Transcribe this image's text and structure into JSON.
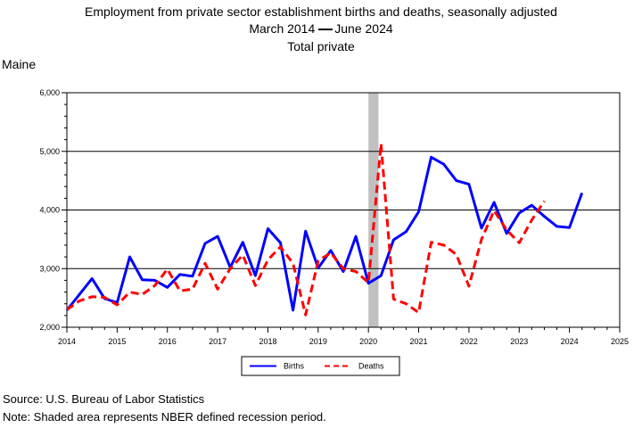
{
  "title": {
    "line1": "Employment from private sector establishment births and deaths, seasonally adjusted",
    "line2_start": "March 2014",
    "line2_end": "June 2024",
    "line3": "Total private"
  },
  "region": "Maine",
  "footer": {
    "source": "Source: U.S. Bureau of Labor Statistics",
    "note": "Note: Shaded area represents NBER defined recession period."
  },
  "chart_data": {
    "type": "line",
    "xlim": [
      2014,
      2025
    ],
    "ylim": [
      2000,
      6000
    ],
    "x_ticks": [
      "2014",
      "2015",
      "2016",
      "2017",
      "2018",
      "2019",
      "2020",
      "2021",
      "2022",
      "2023",
      "2024",
      "2025"
    ],
    "y_ticks": [
      "2,000",
      "3,000",
      "4,000",
      "5,000",
      "6,000"
    ],
    "grid": "horizontal",
    "legend_position": "bottom",
    "recession": {
      "start": 2020.0,
      "end": 2020.2
    },
    "series": [
      {
        "name": "Births",
        "color": "#0000ff",
        "style": "solid",
        "x": [
          2014.0,
          2014.25,
          2014.5,
          2014.75,
          2015.0,
          2015.25,
          2015.5,
          2015.75,
          2016.0,
          2016.25,
          2016.5,
          2016.75,
          2017.0,
          2017.25,
          2017.5,
          2017.75,
          2018.0,
          2018.25,
          2018.5,
          2018.75,
          2019.0,
          2019.25,
          2019.5,
          2019.75,
          2020.0,
          2020.25,
          2020.5,
          2020.75,
          2021.0,
          2021.25,
          2021.5,
          2021.75,
          2022.0,
          2022.25,
          2022.5,
          2022.75,
          2023.0,
          2023.25,
          2023.5,
          2023.75,
          2024.0,
          2024.25
        ],
        "values": [
          2290,
          2560,
          2830,
          2490,
          2420,
          3200,
          2810,
          2800,
          2680,
          2900,
          2870,
          3430,
          3550,
          3020,
          3450,
          2880,
          3680,
          3440,
          2290,
          3640,
          3010,
          3310,
          2950,
          3550,
          2750,
          2880,
          3490,
          3630,
          3970,
          4900,
          4780,
          4500,
          4440,
          3690,
          4130,
          3600,
          3950,
          4080,
          3890,
          3720,
          3700,
          4290
        ]
      },
      {
        "name": "Deaths",
        "color": "#ff0000",
        "style": "dashed",
        "x": [
          2014.0,
          2014.25,
          2014.5,
          2014.75,
          2015.0,
          2015.25,
          2015.5,
          2015.75,
          2016.0,
          2016.25,
          2016.5,
          2016.75,
          2017.0,
          2017.25,
          2017.5,
          2017.75,
          2018.0,
          2018.25,
          2018.5,
          2018.75,
          2019.0,
          2019.25,
          2019.5,
          2019.75,
          2020.0,
          2020.25,
          2020.5,
          2020.75,
          2021.0,
          2021.25,
          2021.5,
          2021.75,
          2022.0,
          2022.25,
          2022.5,
          2022.75,
          2023.0,
          2023.25,
          2023.5
        ],
        "values": [
          2300,
          2450,
          2520,
          2510,
          2380,
          2600,
          2560,
          2710,
          2990,
          2620,
          2650,
          3090,
          2650,
          3000,
          3230,
          2710,
          3150,
          3370,
          3090,
          2210,
          3130,
          3270,
          3000,
          2950,
          2760,
          5130,
          2480,
          2400,
          2250,
          3450,
          3400,
          3240,
          2700,
          3500,
          3990,
          3660,
          3440,
          3830,
          4150
        ]
      }
    ]
  }
}
